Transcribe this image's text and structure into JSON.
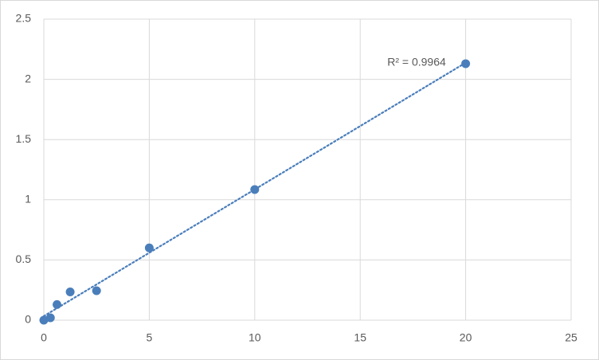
{
  "chart_data": {
    "type": "scatter",
    "annotation": "R² = 0.9964",
    "x": [
      0,
      0.3125,
      0.625,
      1.25,
      2.5,
      5,
      10,
      20
    ],
    "series": [
      {
        "color": "#4a7ebb",
        "values": [
          0,
          0.02,
          0.13,
          0.235,
          0.245,
          0.6,
          1.085,
          2.13
        ]
      }
    ],
    "trendline": "linear",
    "xlim": [
      0,
      25
    ],
    "xticks": [
      0,
      5,
      10,
      15,
      20,
      25
    ],
    "ylim": [
      0,
      2.5
    ],
    "yticks": [
      0,
      0.5,
      1,
      1.5,
      2,
      2.5
    ],
    "grid": true
  }
}
